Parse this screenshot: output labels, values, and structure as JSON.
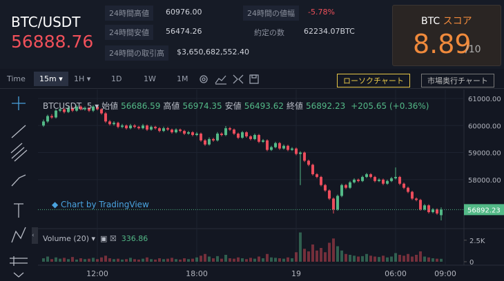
{
  "header": {
    "pair": "BTC/USDT",
    "price": "56888.76",
    "stats": [
      {
        "label": "24時間高値",
        "value": "60976.00"
      },
      {
        "label": "24時間安値",
        "value": "56474.26"
      },
      {
        "label": "24時間の取引高",
        "value": "$3,650,682,552.40"
      },
      {
        "label": "24時間の値幅",
        "value": "-5.78%"
      },
      {
        "label": "約定の数",
        "value": "62234.07BTC"
      }
    ],
    "score": {
      "label": "BTC",
      "accent": "スコア",
      "value": "8.89",
      "max": "/10"
    }
  },
  "toolbar": {
    "time_label": "Time",
    "intervals": [
      "15m",
      "1H",
      "1D",
      "1W",
      "1M"
    ],
    "buttons": [
      "ローソクチャート",
      "市場奥行チャート"
    ]
  },
  "chart": {
    "type": "candlestick",
    "symbol": "BTCUSDT, 5",
    "legend": [
      {
        "label": "始値",
        "value": "56686.59"
      },
      {
        "label": "高値",
        "value": "56974.35"
      },
      {
        "label": "安値",
        "value": "56493.62"
      },
      {
        "label": "終値",
        "value": "56892.23"
      }
    ],
    "change": "+205.65 (+0.36%)",
    "watermark": "Chart by TradingView",
    "up_color": "#53b987",
    "down_color": "#eb4d5c",
    "ylim": [
      56240,
      61330
    ],
    "yticks": [
      {
        "value": 61000,
        "label": "61000.00"
      },
      {
        "value": 60000,
        "label": "60000.00"
      },
      {
        "value": 59000,
        "label": "59000.00"
      },
      {
        "value": 58000,
        "label": "58000.00"
      }
    ],
    "last_price": 56892.23,
    "xticks": [
      {
        "value": 13,
        "label": "12:00"
      },
      {
        "value": 37,
        "label": "18:00"
      },
      {
        "value": 61,
        "label": "19"
      },
      {
        "value": 85,
        "label": "06:00"
      },
      {
        "value": 97,
        "label": "09:00"
      }
    ],
    "candles": [
      [
        60000,
        60220,
        59950,
        60150
      ],
      [
        60150,
        60400,
        60100,
        60350
      ],
      [
        60350,
        60420,
        60250,
        60300
      ],
      [
        60300,
        60600,
        60260,
        60550
      ],
      [
        60550,
        60680,
        60500,
        60600
      ],
      [
        60600,
        60650,
        60450,
        60500
      ],
      [
        60500,
        60720,
        60460,
        60650
      ],
      [
        60650,
        60700,
        60500,
        60550
      ],
      [
        60550,
        60760,
        60510,
        60700
      ],
      [
        60700,
        60750,
        60560,
        60600
      ],
      [
        60600,
        60700,
        60550,
        60650
      ],
      [
        60650,
        60700,
        60500,
        60550
      ],
      [
        60550,
        60750,
        60500,
        60700
      ],
      [
        60700,
        60740,
        60560,
        60600
      ],
      [
        60600,
        60640,
        60400,
        60450
      ],
      [
        60450,
        60500,
        60100,
        60150
      ],
      [
        60150,
        60200,
        60000,
        60050
      ],
      [
        60050,
        60160,
        60000,
        60100
      ],
      [
        60100,
        60140,
        59900,
        59950
      ],
      [
        59950,
        60060,
        59900,
        60000
      ],
      [
        60000,
        60040,
        59850,
        59900
      ],
      [
        59900,
        60060,
        59860,
        60000
      ],
      [
        60000,
        60050,
        59900,
        59950
      ],
      [
        59950,
        59990,
        59850,
        59900
      ],
      [
        59900,
        60060,
        59860,
        60000
      ],
      [
        60000,
        60040,
        59800,
        59850
      ],
      [
        59850,
        60000,
        59810,
        59950
      ],
      [
        59950,
        59990,
        59850,
        59900
      ],
      [
        59900,
        59940,
        59750,
        59800
      ],
      [
        59800,
        59960,
        59760,
        59900
      ],
      [
        59900,
        59950,
        59800,
        59850
      ],
      [
        59850,
        59890,
        59700,
        59750
      ],
      [
        59750,
        59900,
        59710,
        59850
      ],
      [
        59850,
        59890,
        59750,
        59800
      ],
      [
        59800,
        59840,
        59650,
        59700
      ],
      [
        59700,
        59800,
        59660,
        59750
      ],
      [
        59750,
        59790,
        59600,
        59650
      ],
      [
        59650,
        59760,
        59610,
        59700
      ],
      [
        59700,
        59740,
        59400,
        59450
      ],
      [
        59450,
        59500,
        59250,
        59300
      ],
      [
        59300,
        59560,
        59260,
        59500
      ],
      [
        59500,
        59550,
        59400,
        59450
      ],
      [
        59450,
        59760,
        59410,
        59700
      ],
      [
        59700,
        59750,
        59600,
        59650
      ],
      [
        59650,
        59980,
        59610,
        59900
      ],
      [
        59900,
        59950,
        59800,
        59850
      ],
      [
        59850,
        59890,
        59650,
        59700
      ],
      [
        59700,
        59740,
        59500,
        59550
      ],
      [
        59550,
        59800,
        59510,
        59750
      ],
      [
        59750,
        59790,
        59550,
        59600
      ],
      [
        59600,
        59640,
        59450,
        59500
      ],
      [
        59500,
        59700,
        59460,
        59650
      ],
      [
        59650,
        59690,
        59350,
        59400
      ],
      [
        59400,
        59500,
        59360,
        59450
      ],
      [
        59450,
        59490,
        59050,
        59100
      ],
      [
        59100,
        59250,
        59060,
        59200
      ],
      [
        59200,
        59400,
        59160,
        59350
      ],
      [
        59350,
        59390,
        59100,
        59150
      ],
      [
        59150,
        59300,
        59110,
        59250
      ],
      [
        59250,
        59290,
        59050,
        59100
      ],
      [
        59100,
        59200,
        59060,
        59150
      ],
      [
        59150,
        59190,
        58900,
        58950
      ],
      [
        58950,
        59050,
        57800,
        59000
      ],
      [
        59000,
        59040,
        58650,
        58700
      ],
      [
        58700,
        58740,
        58500,
        58550
      ],
      [
        58550,
        58590,
        58150,
        58200
      ],
      [
        58200,
        58240,
        58050,
        58100
      ],
      [
        58100,
        58140,
        57750,
        57800
      ],
      [
        57800,
        57840,
        57550,
        57600
      ],
      [
        57600,
        57640,
        57250,
        57300
      ],
      [
        57300,
        57340,
        56750,
        56900
      ],
      [
        56900,
        57450,
        56850,
        57400
      ],
      [
        57400,
        57850,
        57350,
        57800
      ],
      [
        57800,
        57840,
        57650,
        57700
      ],
      [
        57700,
        57950,
        57660,
        57900
      ],
      [
        57900,
        58050,
        57860,
        58000
      ],
      [
        58000,
        58040,
        57900,
        57950
      ],
      [
        57950,
        58150,
        57910,
        58100
      ],
      [
        58100,
        58250,
        58060,
        58200
      ],
      [
        58200,
        58240,
        58050,
        58100
      ],
      [
        58100,
        58140,
        57900,
        57950
      ],
      [
        57950,
        58050,
        57910,
        58000
      ],
      [
        58000,
        58040,
        57800,
        57850
      ],
      [
        57850,
        58000,
        57810,
        57950
      ],
      [
        57950,
        58100,
        57910,
        58050
      ],
      [
        58050,
        58450,
        58010,
        58100
      ],
      [
        58100,
        58140,
        57800,
        57850
      ],
      [
        57850,
        57890,
        57650,
        57700
      ],
      [
        57700,
        57740,
        57500,
        57550
      ],
      [
        57550,
        57590,
        57250,
        57300
      ],
      [
        57300,
        57340,
        57200,
        57250
      ],
      [
        57250,
        57290,
        56850,
        56900
      ],
      [
        56900,
        57100,
        56860,
        57050
      ],
      [
        57050,
        57090,
        56750,
        56800
      ],
      [
        56800,
        56950,
        56760,
        56900
      ],
      [
        56900,
        56940,
        56700,
        56750
      ],
      [
        56686.59,
        56974.35,
        56493.62,
        56892.23
      ]
    ],
    "volume": {
      "label": "Volume (20)",
      "last": "336.86",
      "ylim": [
        0,
        3600
      ],
      "yticks": [
        0,
        {
          "value": 2500,
          "label": "2.5K"
        }
      ],
      "values": [
        400,
        600,
        300,
        500,
        350,
        450,
        300,
        550,
        250,
        400,
        300,
        350,
        450,
        300,
        500,
        700,
        400,
        300,
        350,
        250,
        300,
        450,
        300,
        250,
        350,
        500,
        300,
        250,
        400,
        300,
        350,
        450,
        300,
        250,
        400,
        300,
        350,
        500,
        700,
        900,
        600,
        400,
        650,
        350,
        800,
        400,
        350,
        500,
        400,
        300,
        450,
        350,
        600,
        400,
        900,
        500,
        450,
        400,
        350,
        500,
        400,
        1100,
        3400,
        1500,
        1200,
        2000,
        1300,
        1600,
        1100,
        2200,
        2700,
        1800,
        1300,
        900,
        800,
        700,
        600,
        650,
        900,
        700,
        600,
        550,
        700,
        500,
        600,
        1000,
        800,
        700,
        900,
        600,
        800,
        1200,
        600,
        500,
        400,
        350,
        336.86
      ]
    }
  }
}
